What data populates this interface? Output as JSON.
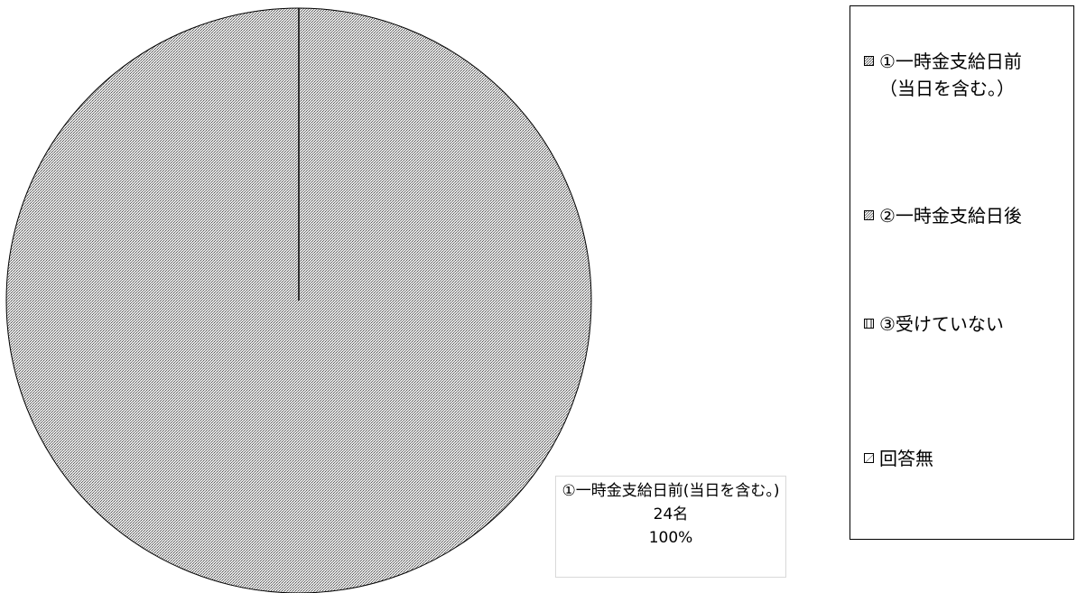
{
  "chart_data": {
    "type": "pie",
    "categories": [
      "①一時金支給日前（当日を含む。）",
      "②一時金支給日後",
      "③受けていない",
      "回答無"
    ],
    "values": [
      24,
      0,
      0,
      0
    ],
    "units": "名",
    "legend": "right",
    "data_labels": [
      {
        "category": "①一時金支給日前(当日を含む。)",
        "value": "24名",
        "percent": "100%"
      }
    ]
  },
  "legend_items": [
    {
      "label": "①一時金支給日前\n（当日を含む。）",
      "pattern": "dense-dots"
    },
    {
      "label": "②一時金支給日後",
      "pattern": "diagonal"
    },
    {
      "label": "③受けていない",
      "pattern": "vertical"
    },
    {
      "label": "回答無",
      "pattern": "light-diagonal"
    }
  ],
  "colors": {
    "slice_fill": "#c8c8c8",
    "outline": "#000000"
  }
}
